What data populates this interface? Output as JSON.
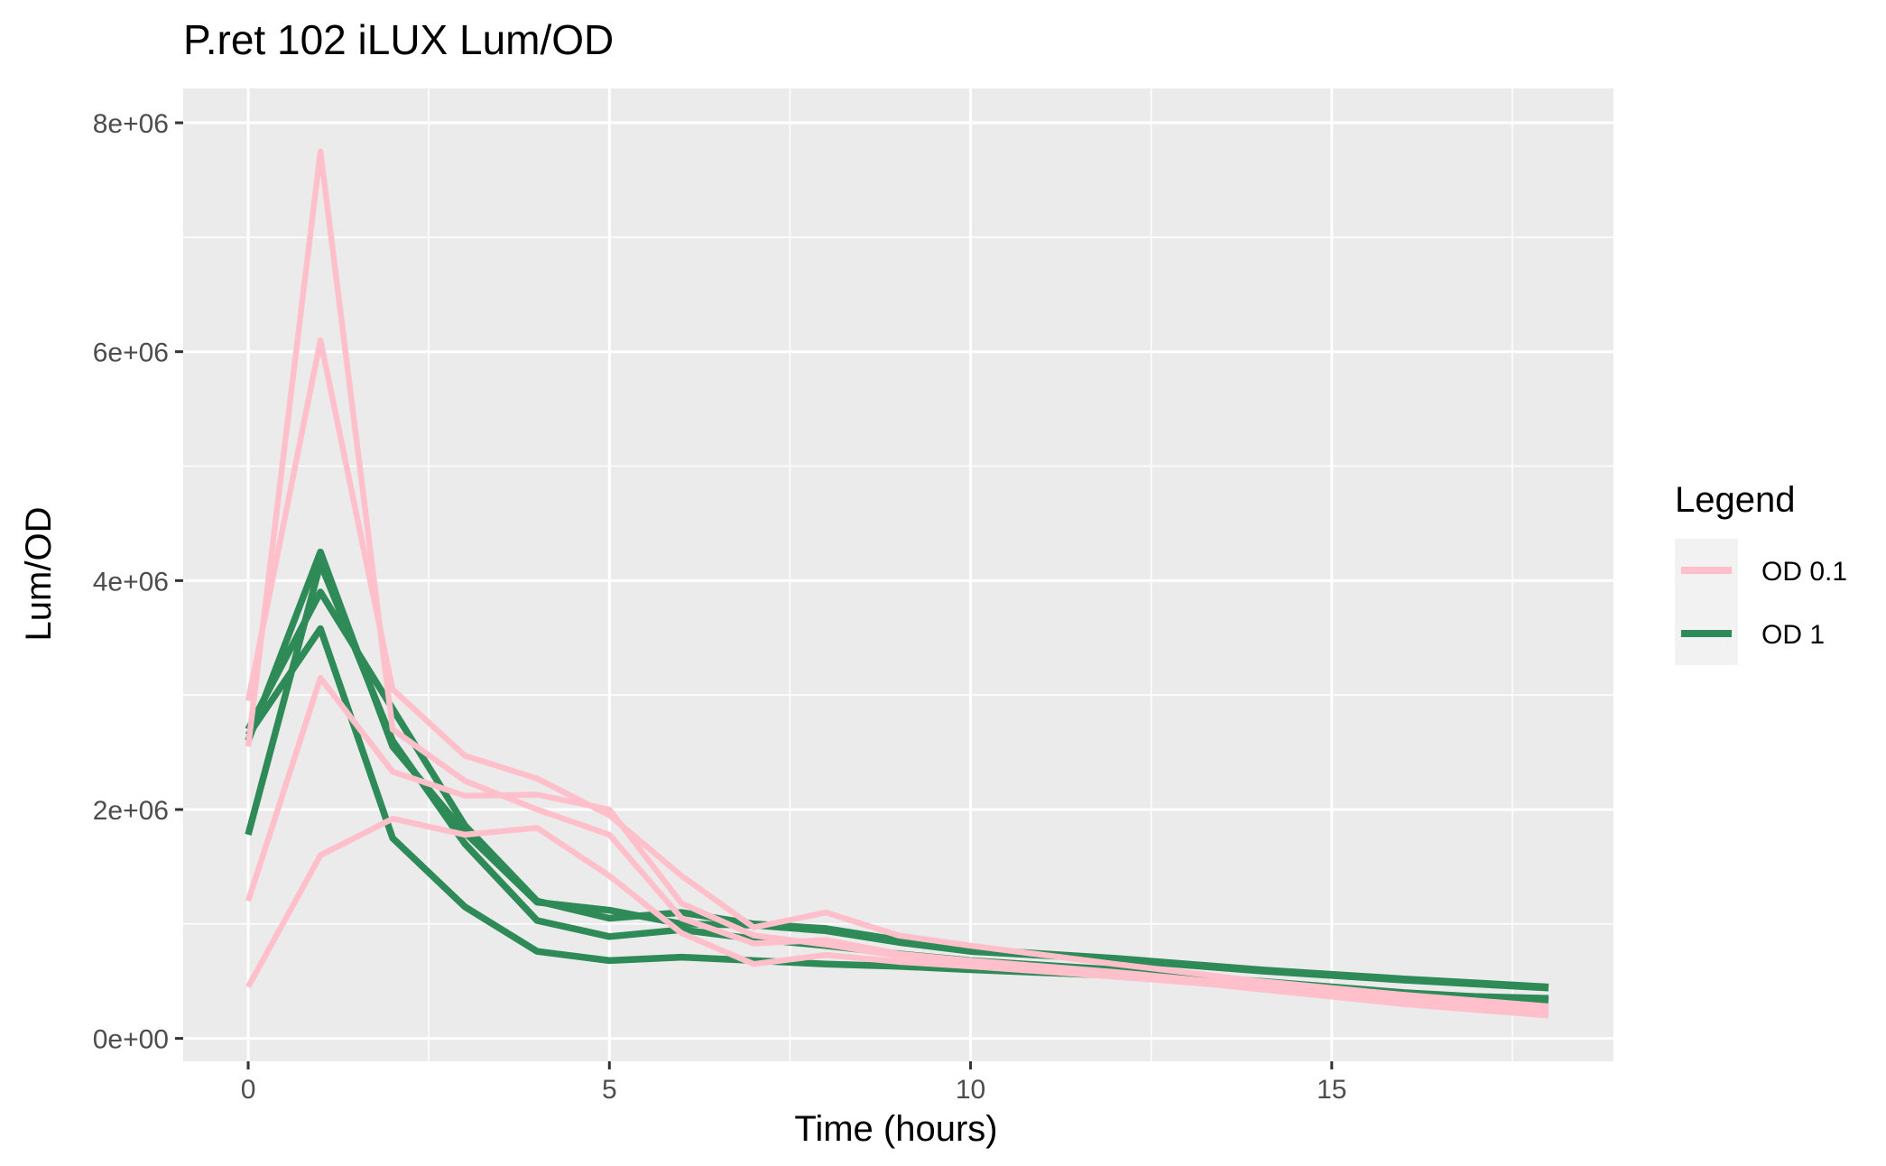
{
  "chart_data": {
    "type": "line",
    "title": "P.ret 102 iLUX Lum/OD",
    "xlabel": "Time (hours)",
    "ylabel": "Lum/OD",
    "xlim": [
      -0.9,
      18.9
    ],
    "ylim": [
      -200000,
      8300000
    ],
    "x_ticks": [
      0,
      5,
      10,
      15
    ],
    "x_tick_labels": [
      "0",
      "5",
      "10",
      "15"
    ],
    "y_ticks": [
      0,
      2000000,
      4000000,
      6000000,
      8000000
    ],
    "y_tick_labels": [
      "0e+00",
      "2e+06",
      "4e+06",
      "6e+06",
      "8e+06"
    ],
    "grid": true,
    "panel_background": "#EBEBEB",
    "legend": {
      "title": "Legend",
      "position": "right",
      "entries": [
        {
          "label": "OD 0.1",
          "color": "#FFC0CB"
        },
        {
          "label": "OD 1",
          "color": "#2E8B57"
        }
      ]
    },
    "x": [
      0,
      1,
      2,
      3,
      4,
      5,
      6,
      7,
      8,
      9,
      10,
      12,
      14,
      16,
      18
    ],
    "series": [
      {
        "group": "OD 0.1",
        "color": "#FFC0CB",
        "values": [
          2550000,
          7750000,
          2700000,
          2250000,
          2000000,
          1780000,
          1050000,
          830000,
          860000,
          740000,
          680000,
          580000,
          460000,
          330000,
          250000
        ]
      },
      {
        "group": "OD 0.1",
        "color": "#FFC0CB",
        "values": [
          2950000,
          6100000,
          3050000,
          2470000,
          2270000,
          1950000,
          1420000,
          970000,
          1100000,
          900000,
          810000,
          650000,
          500000,
          380000,
          280000
        ]
      },
      {
        "group": "OD 0.1",
        "color": "#FFC0CB",
        "values": [
          1200000,
          3150000,
          2330000,
          2120000,
          2130000,
          2000000,
          1180000,
          900000,
          820000,
          720000,
          650000,
          560000,
          430000,
          300000,
          200000
        ]
      },
      {
        "group": "OD 0.1",
        "color": "#FFC0CB",
        "values": [
          450000,
          1600000,
          1920000,
          1780000,
          1840000,
          1420000,
          920000,
          650000,
          730000,
          670000,
          630000,
          540000,
          440000,
          310000,
          210000
        ]
      },
      {
        "group": "OD 1",
        "color": "#2E8B57",
        "values": [
          2600000,
          4250000,
          2550000,
          1800000,
          1190000,
          1120000,
          1000000,
          990000,
          940000,
          840000,
          760000,
          690000,
          590000,
          510000,
          440000
        ]
      },
      {
        "group": "OD 1",
        "color": "#2E8B57",
        "values": [
          2700000,
          3900000,
          2880000,
          1860000,
          1200000,
          1050000,
          1100000,
          1000000,
          960000,
          860000,
          780000,
          700000,
          600000,
          520000,
          450000
        ]
      },
      {
        "group": "OD 1",
        "color": "#2E8B57",
        "values": [
          1780000,
          4150000,
          2600000,
          1700000,
          1030000,
          890000,
          950000,
          870000,
          810000,
          740000,
          680000,
          600000,
          500000,
          400000,
          330000
        ]
      },
      {
        "group": "OD 1",
        "color": "#2E8B57",
        "values": [
          2650000,
          3580000,
          1750000,
          1150000,
          760000,
          680000,
          710000,
          680000,
          650000,
          630000,
          600000,
          550000,
          480000,
          380000,
          350000
        ]
      }
    ]
  }
}
